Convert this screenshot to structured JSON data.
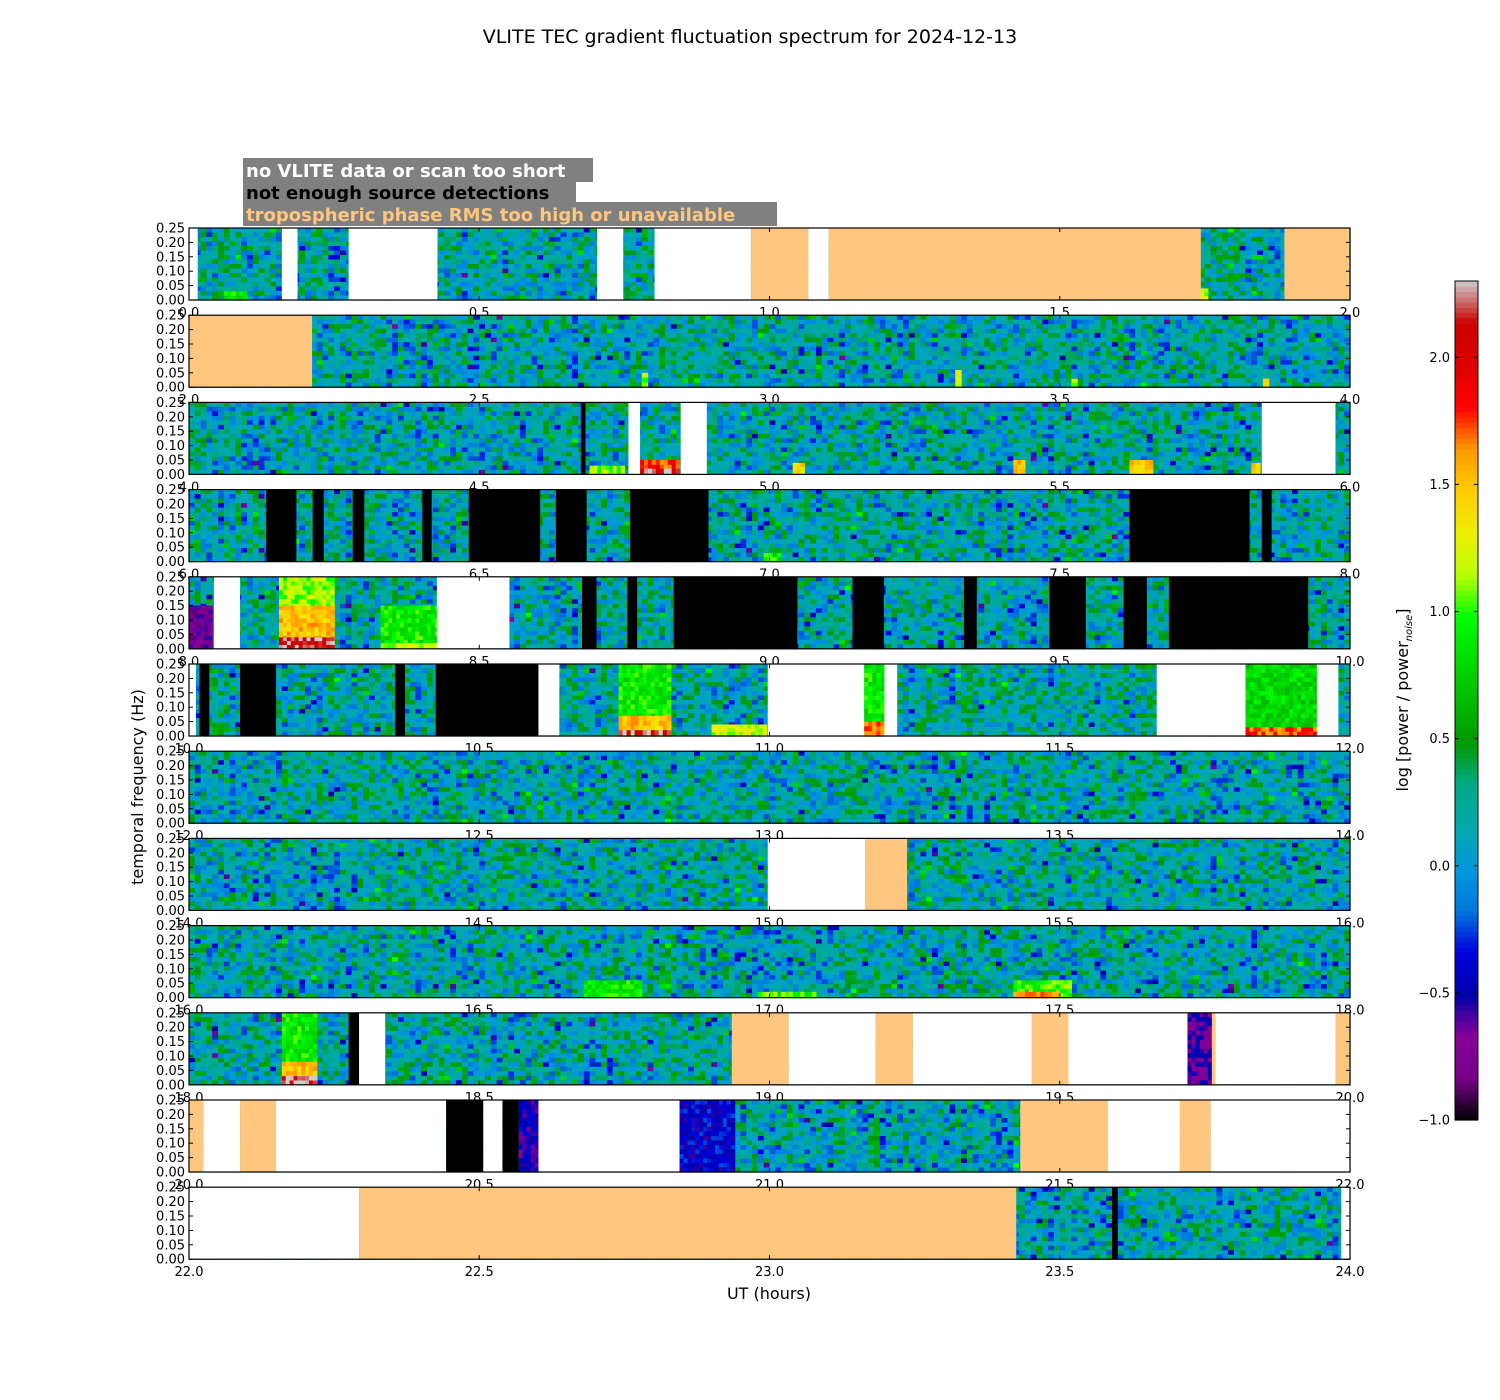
{
  "colors": {
    "white_gap": "#ffffff",
    "black_gap": "#000000",
    "orange_gap": "#ffc67f",
    "legend_bg": "#808080",
    "legend_white_text": "#ffffff",
    "legend_black_text": "#000000",
    "legend_orange_text": "#ffc67f"
  },
  "chart_data": {
    "type": "heatmap",
    "title": "VLITE TEC gradient fluctuation spectrum for 2024-12-13",
    "xlabel": "UT (hours)",
    "ylabel": "temporal frequency (Hz)",
    "colorbar_label": "log [power / power_noise]",
    "colorbar_label_main": "log [power / power",
    "colorbar_label_sub": "noise",
    "colorbar_label_end": "]",
    "colormap": "nipy_spectral",
    "clim": [
      -1.0,
      2.3
    ],
    "colorbar_ticks": [
      "−1.0",
      "−0.5",
      "0.0",
      "0.5",
      "1.0",
      "1.5",
      "2.0"
    ],
    "colorbar_tick_values": [
      -1.0,
      -0.5,
      0.0,
      0.5,
      1.0,
      1.5,
      2.0
    ],
    "ylim": [
      0.0,
      0.25
    ],
    "y_ticks": [
      "0.00",
      "0.05",
      "0.10",
      "0.15",
      "0.20",
      "0.25"
    ],
    "y_tick_values": [
      0.0,
      0.05,
      0.1,
      0.15,
      0.2,
      0.25
    ],
    "legend": [
      {
        "label": "no VLITE data or scan too short",
        "color_key": "legend_white_text"
      },
      {
        "label": "not enough source detections",
        "color_key": "legend_black_text"
      },
      {
        "label": "tropospheric phase RMS too high or unavailable",
        "color_key": "legend_orange_text"
      }
    ],
    "panels": [
      {
        "xlim": [
          0,
          2
        ],
        "x_ticks": [
          "0.0",
          "0.5",
          "1.0",
          "1.5",
          "2.0"
        ],
        "gaps": [
          {
            "start": 0.0,
            "end": 0.015,
            "kind": "white"
          },
          {
            "start": 0.16,
            "end": 0.187,
            "kind": "white"
          },
          {
            "start": 0.275,
            "end": 0.428,
            "kind": "white"
          },
          {
            "start": 0.703,
            "end": 0.748,
            "kind": "white"
          },
          {
            "start": 0.802,
            "end": 0.968,
            "kind": "white"
          },
          {
            "start": 0.968,
            "end": 1.067,
            "kind": "orange"
          },
          {
            "start": 1.067,
            "end": 1.102,
            "kind": "white"
          },
          {
            "start": 1.102,
            "end": 1.743,
            "kind": "orange"
          },
          {
            "start": 1.887,
            "end": 2.0,
            "kind": "orange"
          }
        ],
        "hotspots": [
          {
            "x0": 0.06,
            "x1": 0.1,
            "f1": 0.03,
            "level": 0.9
          },
          {
            "x0": 1.742,
            "x1": 1.755,
            "f1": 0.04,
            "level": 1.2
          }
        ]
      },
      {
        "xlim": [
          2,
          4
        ],
        "x_ticks": [
          "2.0",
          "2.5",
          "3.0",
          "3.5",
          "4.0"
        ],
        "gaps": [
          {
            "start": 2.0,
            "end": 2.212,
            "kind": "orange"
          }
        ],
        "hotspots": [
          {
            "x0": 2.78,
            "x1": 2.79,
            "f1": 0.05,
            "level": 1.1
          },
          {
            "x0": 3.32,
            "x1": 3.33,
            "f1": 0.06,
            "level": 1.3
          },
          {
            "x0": 3.52,
            "x1": 3.53,
            "f1": 0.03,
            "level": 1.2
          },
          {
            "x0": 3.85,
            "x1": 3.86,
            "f1": 0.03,
            "level": 1.3
          }
        ]
      },
      {
        "xlim": [
          4,
          6
        ],
        "x_ticks": [
          "4.0",
          "4.5",
          "5.0",
          "5.5",
          "6.0"
        ],
        "gaps": [
          {
            "start": 4.675,
            "end": 4.683,
            "kind": "black"
          },
          {
            "start": 4.757,
            "end": 4.777,
            "kind": "white"
          },
          {
            "start": 4.847,
            "end": 4.892,
            "kind": "white"
          },
          {
            "start": 5.848,
            "end": 5.975,
            "kind": "white"
          }
        ],
        "hotspots": [
          {
            "x0": 4.69,
            "x1": 4.75,
            "f1": 0.03,
            "level": 1.1
          },
          {
            "x0": 4.777,
            "x1": 4.845,
            "f1": 0.05,
            "level": 1.8
          },
          {
            "x0": 4.777,
            "x1": 4.845,
            "f1": 0.02,
            "level": 2.2
          },
          {
            "x0": 5.04,
            "x1": 5.06,
            "f1": 0.04,
            "level": 1.4
          },
          {
            "x0": 5.42,
            "x1": 5.44,
            "f1": 0.05,
            "level": 1.5
          },
          {
            "x0": 5.62,
            "x1": 5.66,
            "f1": 0.05,
            "level": 1.5
          },
          {
            "x0": 5.83,
            "x1": 5.845,
            "f1": 0.04,
            "level": 1.4
          }
        ]
      },
      {
        "xlim": [
          6,
          8
        ],
        "x_ticks": [
          "6.0",
          "6.5",
          "7.0",
          "7.5",
          "8.0"
        ],
        "gaps": [
          {
            "start": 6.133,
            "end": 6.185,
            "kind": "black"
          },
          {
            "start": 6.213,
            "end": 6.232,
            "kind": "black"
          },
          {
            "start": 6.282,
            "end": 6.302,
            "kind": "black"
          },
          {
            "start": 6.402,
            "end": 6.418,
            "kind": "black"
          },
          {
            "start": 6.482,
            "end": 6.605,
            "kind": "black"
          },
          {
            "start": 6.632,
            "end": 6.685,
            "kind": "black"
          },
          {
            "start": 6.76,
            "end": 6.895,
            "kind": "black"
          },
          {
            "start": 7.62,
            "end": 7.827,
            "kind": "black"
          },
          {
            "start": 7.848,
            "end": 7.865,
            "kind": "black"
          }
        ],
        "hotspots": [
          {
            "x0": 6.99,
            "x1": 7.02,
            "f1": 0.03,
            "level": 0.9
          }
        ]
      },
      {
        "xlim": [
          8,
          10
        ],
        "x_ticks": [
          "8.0",
          "8.5",
          "9.0",
          "9.5",
          "10.0"
        ],
        "gaps": [
          {
            "start": 8.043,
            "end": 8.088,
            "kind": "white"
          },
          {
            "start": 8.427,
            "end": 8.552,
            "kind": "white"
          },
          {
            "start": 8.677,
            "end": 8.702,
            "kind": "black"
          },
          {
            "start": 8.755,
            "end": 8.772,
            "kind": "black"
          },
          {
            "start": 8.835,
            "end": 9.048,
            "kind": "black"
          },
          {
            "start": 9.143,
            "end": 9.197,
            "kind": "black"
          },
          {
            "start": 9.335,
            "end": 9.357,
            "kind": "black"
          },
          {
            "start": 9.482,
            "end": 9.545,
            "kind": "black"
          },
          {
            "start": 9.61,
            "end": 9.65,
            "kind": "black"
          },
          {
            "start": 9.688,
            "end": 9.928,
            "kind": "black"
          }
        ],
        "hotspots": [
          {
            "x0": 8.155,
            "x1": 8.25,
            "f1": 0.25,
            "level": 1.1
          },
          {
            "x0": 8.155,
            "x1": 8.25,
            "f1": 0.15,
            "level": 1.5
          },
          {
            "x0": 8.155,
            "x1": 8.25,
            "f1": 0.04,
            "level": 2.2
          },
          {
            "x0": 8.33,
            "x1": 8.43,
            "f1": 0.15,
            "level": 0.9
          },
          {
            "x0": 8.33,
            "x1": 8.43,
            "f1": 0.02,
            "level": 1.2
          },
          {
            "x0": 8.0,
            "x1": 8.04,
            "f1": 0.15,
            "level": -0.7
          }
        ]
      },
      {
        "xlim": [
          10,
          12
        ],
        "x_ticks": [
          "10.0",
          "10.5",
          "11.0",
          "11.5",
          "12.0"
        ],
        "gaps": [
          {
            "start": 10.0,
            "end": 10.012,
            "kind": "white"
          },
          {
            "start": 10.018,
            "end": 10.035,
            "kind": "black"
          },
          {
            "start": 10.088,
            "end": 10.15,
            "kind": "black"
          },
          {
            "start": 10.355,
            "end": 10.372,
            "kind": "black"
          },
          {
            "start": 10.425,
            "end": 10.602,
            "kind": "black"
          },
          {
            "start": 10.602,
            "end": 10.638,
            "kind": "white"
          },
          {
            "start": 10.997,
            "end": 11.163,
            "kind": "white"
          },
          {
            "start": 11.198,
            "end": 11.22,
            "kind": "white"
          },
          {
            "start": 11.667,
            "end": 11.82,
            "kind": "white"
          },
          {
            "start": 11.943,
            "end": 11.98,
            "kind": "white"
          }
        ],
        "hotspots": [
          {
            "x0": 10.74,
            "x1": 10.83,
            "f1": 0.25,
            "level": 0.9
          },
          {
            "x0": 10.74,
            "x1": 10.83,
            "f1": 0.07,
            "level": 1.5
          },
          {
            "x0": 10.74,
            "x1": 10.83,
            "f1": 0.02,
            "level": 2.2
          },
          {
            "x0": 10.9,
            "x1": 10.995,
            "f1": 0.04,
            "level": 1.2
          },
          {
            "x0": 11.163,
            "x1": 11.198,
            "f1": 0.25,
            "level": 0.9
          },
          {
            "x0": 11.163,
            "x1": 11.198,
            "f1": 0.05,
            "level": 1.7
          },
          {
            "x0": 11.82,
            "x1": 11.943,
            "f1": 0.25,
            "level": 0.8
          },
          {
            "x0": 11.82,
            "x1": 11.943,
            "f1": 0.03,
            "level": 1.7
          }
        ]
      },
      {
        "xlim": [
          12,
          14
        ],
        "x_ticks": [
          "12.0",
          "12.5",
          "13.0",
          "13.5",
          "14.0"
        ],
        "gaps": [],
        "hotspots": []
      },
      {
        "xlim": [
          14,
          16
        ],
        "x_ticks": [
          "14.0",
          "14.5",
          "15.0",
          "15.5",
          "16.0"
        ],
        "gaps": [
          {
            "start": 14.997,
            "end": 15.165,
            "kind": "white"
          },
          {
            "start": 15.165,
            "end": 15.237,
            "kind": "orange"
          }
        ],
        "hotspots": []
      },
      {
        "xlim": [
          16,
          18
        ],
        "x_ticks": [
          "16.0",
          "16.5",
          "17.0",
          "17.5",
          "18.0"
        ],
        "gaps": [],
        "hotspots": [
          {
            "x0": 16.68,
            "x1": 16.78,
            "f1": 0.06,
            "level": 0.9
          },
          {
            "x0": 16.98,
            "x1": 17.08,
            "f1": 0.02,
            "level": 1.0
          },
          {
            "x0": 17.42,
            "x1": 17.52,
            "f1": 0.06,
            "level": 1.0
          },
          {
            "x0": 17.42,
            "x1": 17.5,
            "f1": 0.02,
            "level": 1.7
          }
        ]
      },
      {
        "xlim": [
          18,
          20
        ],
        "x_ticks": [
          "18.0",
          "18.5",
          "19.0",
          "19.5",
          "20.0"
        ],
        "gaps": [
          {
            "start": 18.275,
            "end": 18.293,
            "kind": "black"
          },
          {
            "start": 18.293,
            "end": 18.338,
            "kind": "white"
          },
          {
            "start": 18.935,
            "end": 19.033,
            "kind": "orange"
          },
          {
            "start": 19.033,
            "end": 19.183,
            "kind": "white"
          },
          {
            "start": 19.183,
            "end": 19.247,
            "kind": "orange"
          },
          {
            "start": 19.247,
            "end": 19.452,
            "kind": "white"
          },
          {
            "start": 19.452,
            "end": 19.515,
            "kind": "orange"
          },
          {
            "start": 19.515,
            "end": 19.72,
            "kind": "white"
          },
          {
            "start": 19.762,
            "end": 19.768,
            "kind": "orange"
          },
          {
            "start": 19.768,
            "end": 19.975,
            "kind": "white"
          },
          {
            "start": 19.975,
            "end": 20.0,
            "kind": "orange"
          }
        ],
        "hotspots": [
          {
            "x0": 18.16,
            "x1": 18.22,
            "f1": 0.25,
            "level": 0.9
          },
          {
            "x0": 18.16,
            "x1": 18.22,
            "f1": 0.08,
            "level": 1.5
          },
          {
            "x0": 18.16,
            "x1": 18.22,
            "f1": 0.03,
            "level": 2.2
          },
          {
            "x0": 19.72,
            "x1": 19.762,
            "f1": 0.25,
            "level": -0.6
          }
        ]
      },
      {
        "xlim": [
          20,
          22
        ],
        "x_ticks": [
          "20.0",
          "20.5",
          "21.0",
          "21.5",
          "22.0"
        ],
        "gaps": [
          {
            "start": 20.0,
            "end": 20.025,
            "kind": "orange"
          },
          {
            "start": 20.025,
            "end": 20.088,
            "kind": "white"
          },
          {
            "start": 20.088,
            "end": 20.15,
            "kind": "orange"
          },
          {
            "start": 20.15,
            "end": 20.443,
            "kind": "white"
          },
          {
            "start": 20.443,
            "end": 20.507,
            "kind": "black"
          },
          {
            "start": 20.507,
            "end": 20.54,
            "kind": "white"
          },
          {
            "start": 20.54,
            "end": 20.568,
            "kind": "black"
          },
          {
            "start": 20.602,
            "end": 20.845,
            "kind": "white"
          },
          {
            "start": 21.432,
            "end": 21.583,
            "kind": "orange"
          },
          {
            "start": 21.583,
            "end": 21.707,
            "kind": "white"
          },
          {
            "start": 21.707,
            "end": 21.76,
            "kind": "orange"
          },
          {
            "start": 21.76,
            "end": 22.0,
            "kind": "white"
          }
        ],
        "hotspots": [
          {
            "x0": 20.568,
            "x1": 20.602,
            "f1": 0.25,
            "level": -0.5
          },
          {
            "x0": 20.845,
            "x1": 20.94,
            "f1": 0.25,
            "level": -0.4
          }
        ]
      },
      {
        "xlim": [
          22,
          24
        ],
        "x_ticks": [
          "22.0",
          "22.5",
          "23.0",
          "23.5",
          "24.0"
        ],
        "gaps": [
          {
            "start": 22.0,
            "end": 22.293,
            "kind": "white"
          },
          {
            "start": 22.293,
            "end": 23.425,
            "kind": "orange"
          },
          {
            "start": 23.59,
            "end": 23.6,
            "kind": "black"
          },
          {
            "start": 23.985,
            "end": 24.0,
            "kind": "white"
          }
        ],
        "hotspots": []
      }
    ]
  }
}
